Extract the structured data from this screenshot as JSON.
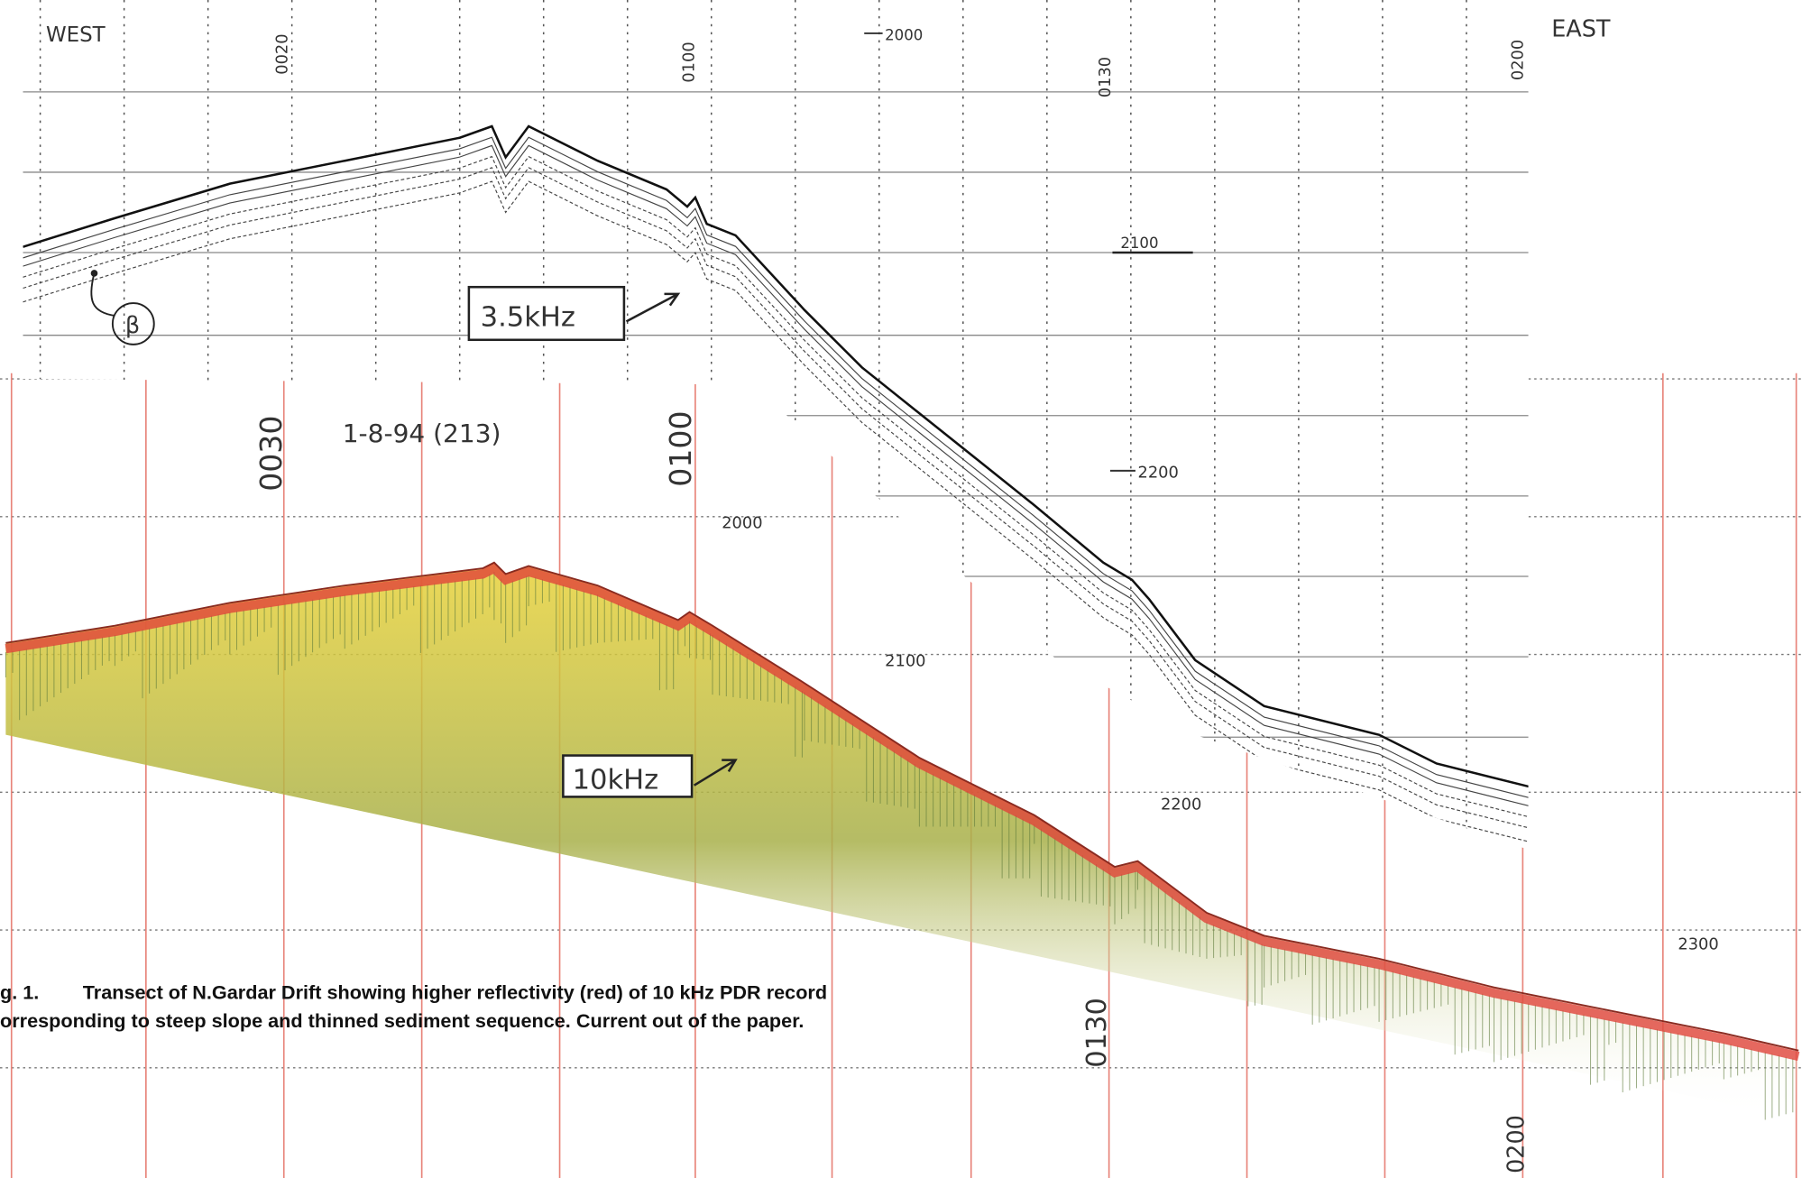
{
  "record_3_5khz": {
    "west": "WEST",
    "east": "EAST",
    "time_marks": [
      "0020",
      "0100",
      "0130",
      "0200"
    ],
    "depth_marks": [
      "2000",
      "2100",
      "2200"
    ],
    "frequency": "3.5kHz",
    "reflector": "β"
  },
  "record_10khz": {
    "date": "1-8-94 (213)",
    "time_marks": [
      "0030",
      "0100",
      "0130",
      "0200"
    ],
    "depth_marks": [
      "2000",
      "2100",
      "2200",
      "2300"
    ],
    "frequency": "10kHz"
  },
  "caption": {
    "label": "g. 1.",
    "lines": [
      "Transect of N.Gardar Drift showing higher reflectivity (red) of 10 kHz PDR record",
      "orresponding to steep slope and thinned sediment sequence.  Current out of the paper."
    ]
  }
}
